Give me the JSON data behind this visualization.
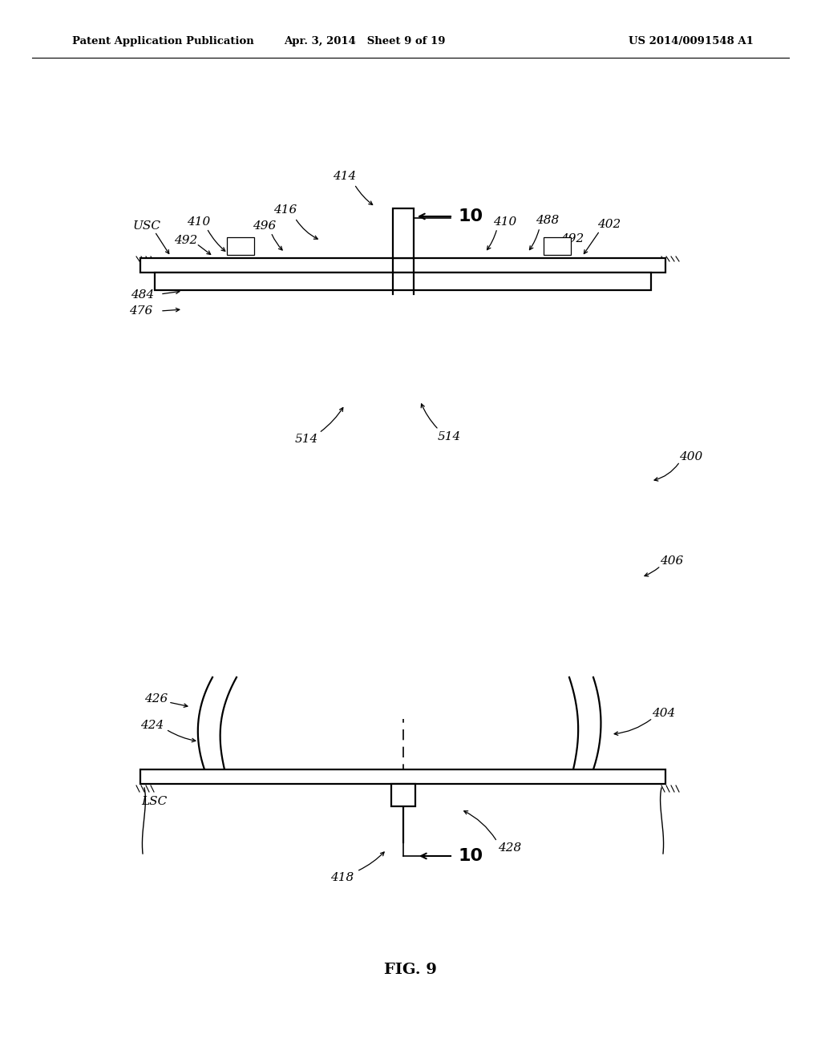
{
  "bg_color": "#ffffff",
  "header_left": "Patent Application Publication",
  "header_mid": "Apr. 3, 2014   Sheet 9 of 19",
  "header_right": "US 2014/0091548 A1",
  "figure_label": "FIG. 9",
  "line_color": "#000000"
}
